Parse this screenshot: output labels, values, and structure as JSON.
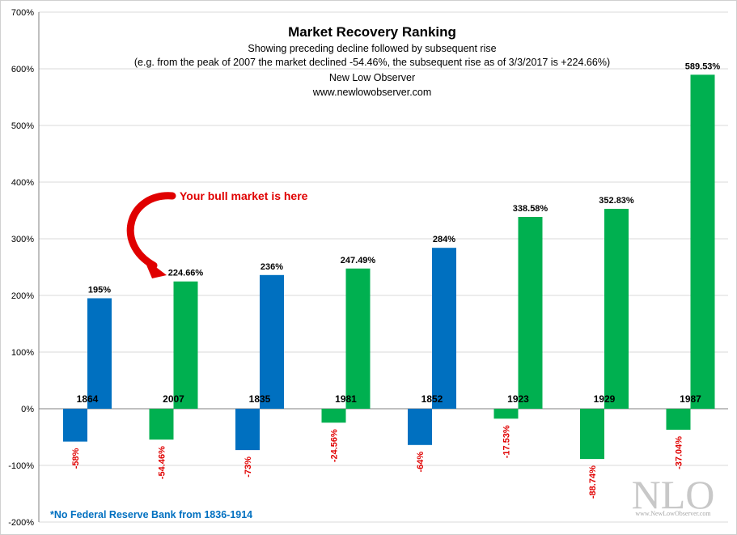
{
  "chart_data": {
    "type": "bar",
    "title": "Market Recovery Ranking",
    "subtitle_lines": [
      "Showing preceding decline followed by subsequent rise",
      "(e.g. from the peak  of 2007   the market declined -54.46%, the subsequent rise  as of 3/3/2017  is +224.66%)",
      "New Low Observer",
      "www.newlowobserver.com"
    ],
    "ylim": [
      -200,
      700
    ],
    "yticks": [
      -200,
      -100,
      0,
      100,
      200,
      300,
      400,
      500,
      600,
      700
    ],
    "ytick_labels": [
      "-200%",
      "-100%",
      "0%",
      "100%",
      "200%",
      "300%",
      "400%",
      "500%",
      "600%",
      "700%"
    ],
    "categories": [
      "1864",
      "2007",
      "1835",
      "1981",
      "1852",
      "1923",
      "1929",
      "1987"
    ],
    "colors": [
      "blue",
      "green",
      "blue",
      "green",
      "blue",
      "green",
      "green",
      "green"
    ],
    "series": [
      {
        "name": "Preceding decline",
        "values": [
          -58,
          -54.46,
          -73,
          -24.56,
          -64,
          -17.53,
          -88.74,
          -37.04
        ],
        "labels": [
          "-58%",
          "-54.46%",
          "-73%",
          "-24.56%",
          "-64%",
          "-17.53%",
          "-88.74%",
          "-37.04%"
        ]
      },
      {
        "name": "Subsequent rise",
        "values": [
          195,
          224.66,
          236,
          247.49,
          284,
          338.58,
          352.83,
          589.53
        ],
        "labels": [
          "195%",
          "224.66%",
          "236%",
          "247.49%",
          "284%",
          "338.58%",
          "352.83%",
          "589.53%"
        ]
      }
    ],
    "annotation": "Your bull market is here",
    "footnote": "*No Federal Reserve Bank from 1836-1914"
  },
  "palette": {
    "blue": "#0070c0",
    "green": "#00b050",
    "red": "#e00000",
    "grid": "#d9d9d9",
    "axis": "#808080"
  },
  "logo": {
    "text": "NLO",
    "url": "www.NewLowObserver.com"
  }
}
